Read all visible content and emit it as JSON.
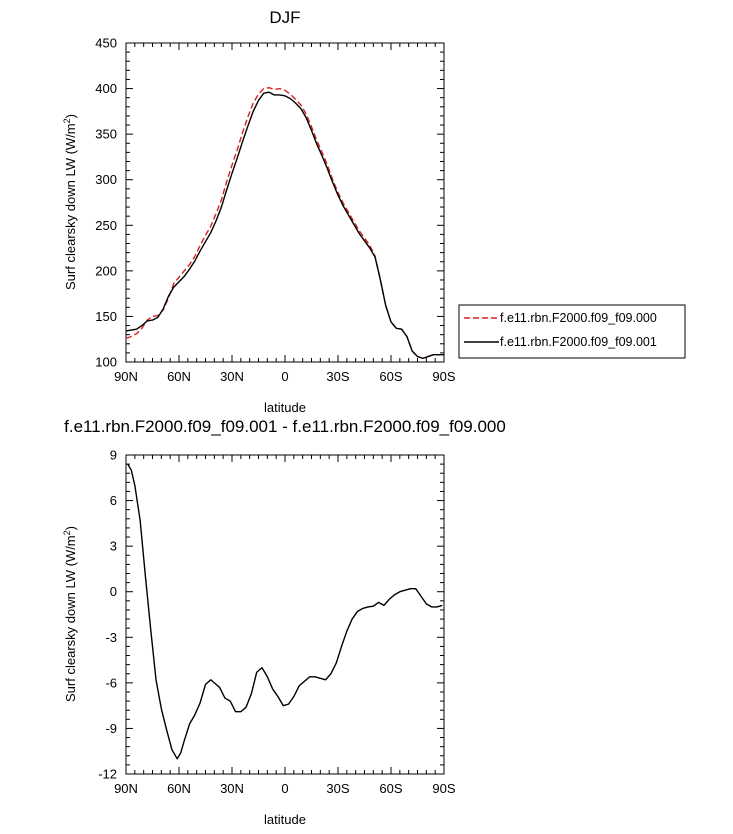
{
  "chart_data": [
    {
      "type": "line",
      "title": "DJF",
      "xlabel": "latitude",
      "ylabel": "Surf clearsky down LW (W/m²)",
      "xlim": [
        90,
        -90
      ],
      "ylim": [
        100,
        450
      ],
      "xticks": [
        90,
        60,
        30,
        0,
        -30,
        -60,
        -90
      ],
      "xtick_labels": [
        "90N",
        "60N",
        "30N",
        "0",
        "30S",
        "60S",
        "90S"
      ],
      "yticks": [
        100,
        150,
        200,
        250,
        300,
        350,
        400,
        450
      ],
      "ytick_labels": [
        "100",
        "150",
        "200",
        "250",
        "300",
        "350",
        "400",
        "450"
      ],
      "grid": false,
      "legend_position": "right",
      "series": [
        {
          "name": "f.e11.rbn.F2000.f09_f09.000",
          "color": "#d62020",
          "dash": "dashed",
          "x": [
            90,
            87,
            84,
            81,
            78,
            75,
            72,
            69,
            66,
            63,
            60,
            57,
            54,
            51,
            48,
            45,
            42,
            39,
            36,
            33,
            30,
            27,
            24,
            21,
            18,
            15,
            12,
            9,
            6,
            3,
            0,
            -3,
            -6,
            -9,
            -12,
            -15,
            -18,
            -21,
            -24,
            -27,
            -30,
            -33,
            -36,
            -39,
            -42,
            -45,
            -48,
            -51,
            -54,
            -57,
            -60,
            -63,
            -66,
            -69,
            -72,
            -75,
            -78,
            -81,
            -84,
            -87,
            -90
          ],
          "y": [
            126,
            128,
            131,
            137,
            146,
            150,
            151,
            157,
            170,
            186,
            193,
            200,
            207,
            216,
            228,
            239,
            249,
            263,
            278,
            298,
            316,
            333,
            352,
            369,
            384,
            394,
            400,
            401,
            399,
            400,
            398,
            394,
            388,
            382,
            372,
            358,
            343,
            330,
            316,
            300,
            286,
            274,
            264,
            254,
            244,
            236,
            228,
            216,
            190,
            162,
            144,
            137,
            136,
            128,
            112,
            106,
            104,
            106,
            108,
            108,
            108
          ]
        },
        {
          "name": "f.e11.rbn.F2000.f09_f09.001",
          "color": "#000000",
          "dash": "solid",
          "x": [
            90,
            87,
            84,
            81,
            78,
            75,
            72,
            69,
            66,
            63,
            60,
            57,
            54,
            51,
            48,
            45,
            42,
            39,
            36,
            33,
            30,
            27,
            24,
            21,
            18,
            15,
            12,
            9,
            6,
            3,
            0,
            -3,
            -6,
            -9,
            -12,
            -15,
            -18,
            -21,
            -24,
            -27,
            -30,
            -33,
            -36,
            -39,
            -42,
            -45,
            -48,
            -51,
            -54,
            -57,
            -60,
            -63,
            -66,
            -69,
            -72,
            -75,
            -78,
            -81,
            -84,
            -87,
            -90
          ],
          "y": [
            134,
            135,
            136,
            140,
            145,
            146,
            149,
            158,
            172,
            182,
            188,
            194,
            202,
            211,
            222,
            232,
            242,
            255,
            270,
            289,
            307,
            324,
            342,
            359,
            375,
            387,
            395,
            396,
            393,
            393,
            392,
            389,
            384,
            378,
            368,
            354,
            339,
            326,
            312,
            297,
            283,
            271,
            261,
            251,
            241,
            233,
            225,
            215,
            190,
            162,
            144,
            137,
            136,
            128,
            112,
            106,
            104,
            106,
            108,
            108,
            108
          ]
        }
      ]
    },
    {
      "type": "line",
      "title": "f.e11.rbn.F2000.f09_f09.001 - f.e11.rbn.F2000.f09_f09.000",
      "xlabel": "latitude",
      "ylabel": "Surf clearsky down LW (W/m²)",
      "xlim": [
        90,
        -90
      ],
      "ylim": [
        -12,
        9
      ],
      "xticks": [
        90,
        60,
        30,
        0,
        -30,
        -60,
        -90
      ],
      "xtick_labels": [
        "90N",
        "60N",
        "30N",
        "0",
        "30S",
        "60S",
        "90S"
      ],
      "yticks": [
        -12,
        -9,
        -6,
        -3,
        0,
        3,
        6,
        9
      ],
      "ytick_labels": [
        "-12",
        "-9",
        "-6",
        "-3",
        "0",
        "3",
        "6",
        "9"
      ],
      "grid": false,
      "series": [
        {
          "name": "",
          "color": "#000000",
          "dash": "solid",
          "x": [
            89,
            87,
            85,
            82,
            79,
            76,
            73,
            70,
            67,
            64,
            61,
            59,
            57,
            54,
            51,
            48,
            45,
            42,
            40,
            37,
            34,
            31,
            28,
            25,
            22,
            19,
            16,
            13,
            10,
            7,
            4,
            1,
            -2,
            -5,
            -8,
            -11,
            -14,
            -17,
            -20,
            -23,
            -26,
            -29,
            -32,
            -35,
            -38,
            -41,
            -44,
            -47,
            -50,
            -53,
            -56,
            -59,
            -62,
            -65,
            -68,
            -71,
            -74,
            -77,
            -80,
            -83,
            -86,
            -89
          ],
          "y": [
            8.4,
            8.0,
            7.0,
            4.7,
            1.0,
            -2.5,
            -5.8,
            -7.7,
            -9.1,
            -10.4,
            -11.0,
            -10.6,
            -9.8,
            -8.7,
            -8.1,
            -7.3,
            -6.1,
            -5.8,
            -6.0,
            -6.3,
            -7.0,
            -7.2,
            -7.9,
            -7.9,
            -7.6,
            -6.7,
            -5.3,
            -5.0,
            -5.6,
            -6.4,
            -6.9,
            -7.5,
            -7.4,
            -6.9,
            -6.2,
            -5.9,
            -5.6,
            -5.6,
            -5.7,
            -5.8,
            -5.4,
            -4.7,
            -3.6,
            -2.6,
            -1.8,
            -1.3,
            -1.1,
            -1.0,
            -0.95,
            -0.7,
            -0.9,
            -0.5,
            -0.2,
            0.0,
            0.1,
            0.2,
            0.2,
            -0.3,
            -0.8,
            -1.0,
            -1.0,
            -0.9
          ]
        }
      ]
    }
  ]
}
